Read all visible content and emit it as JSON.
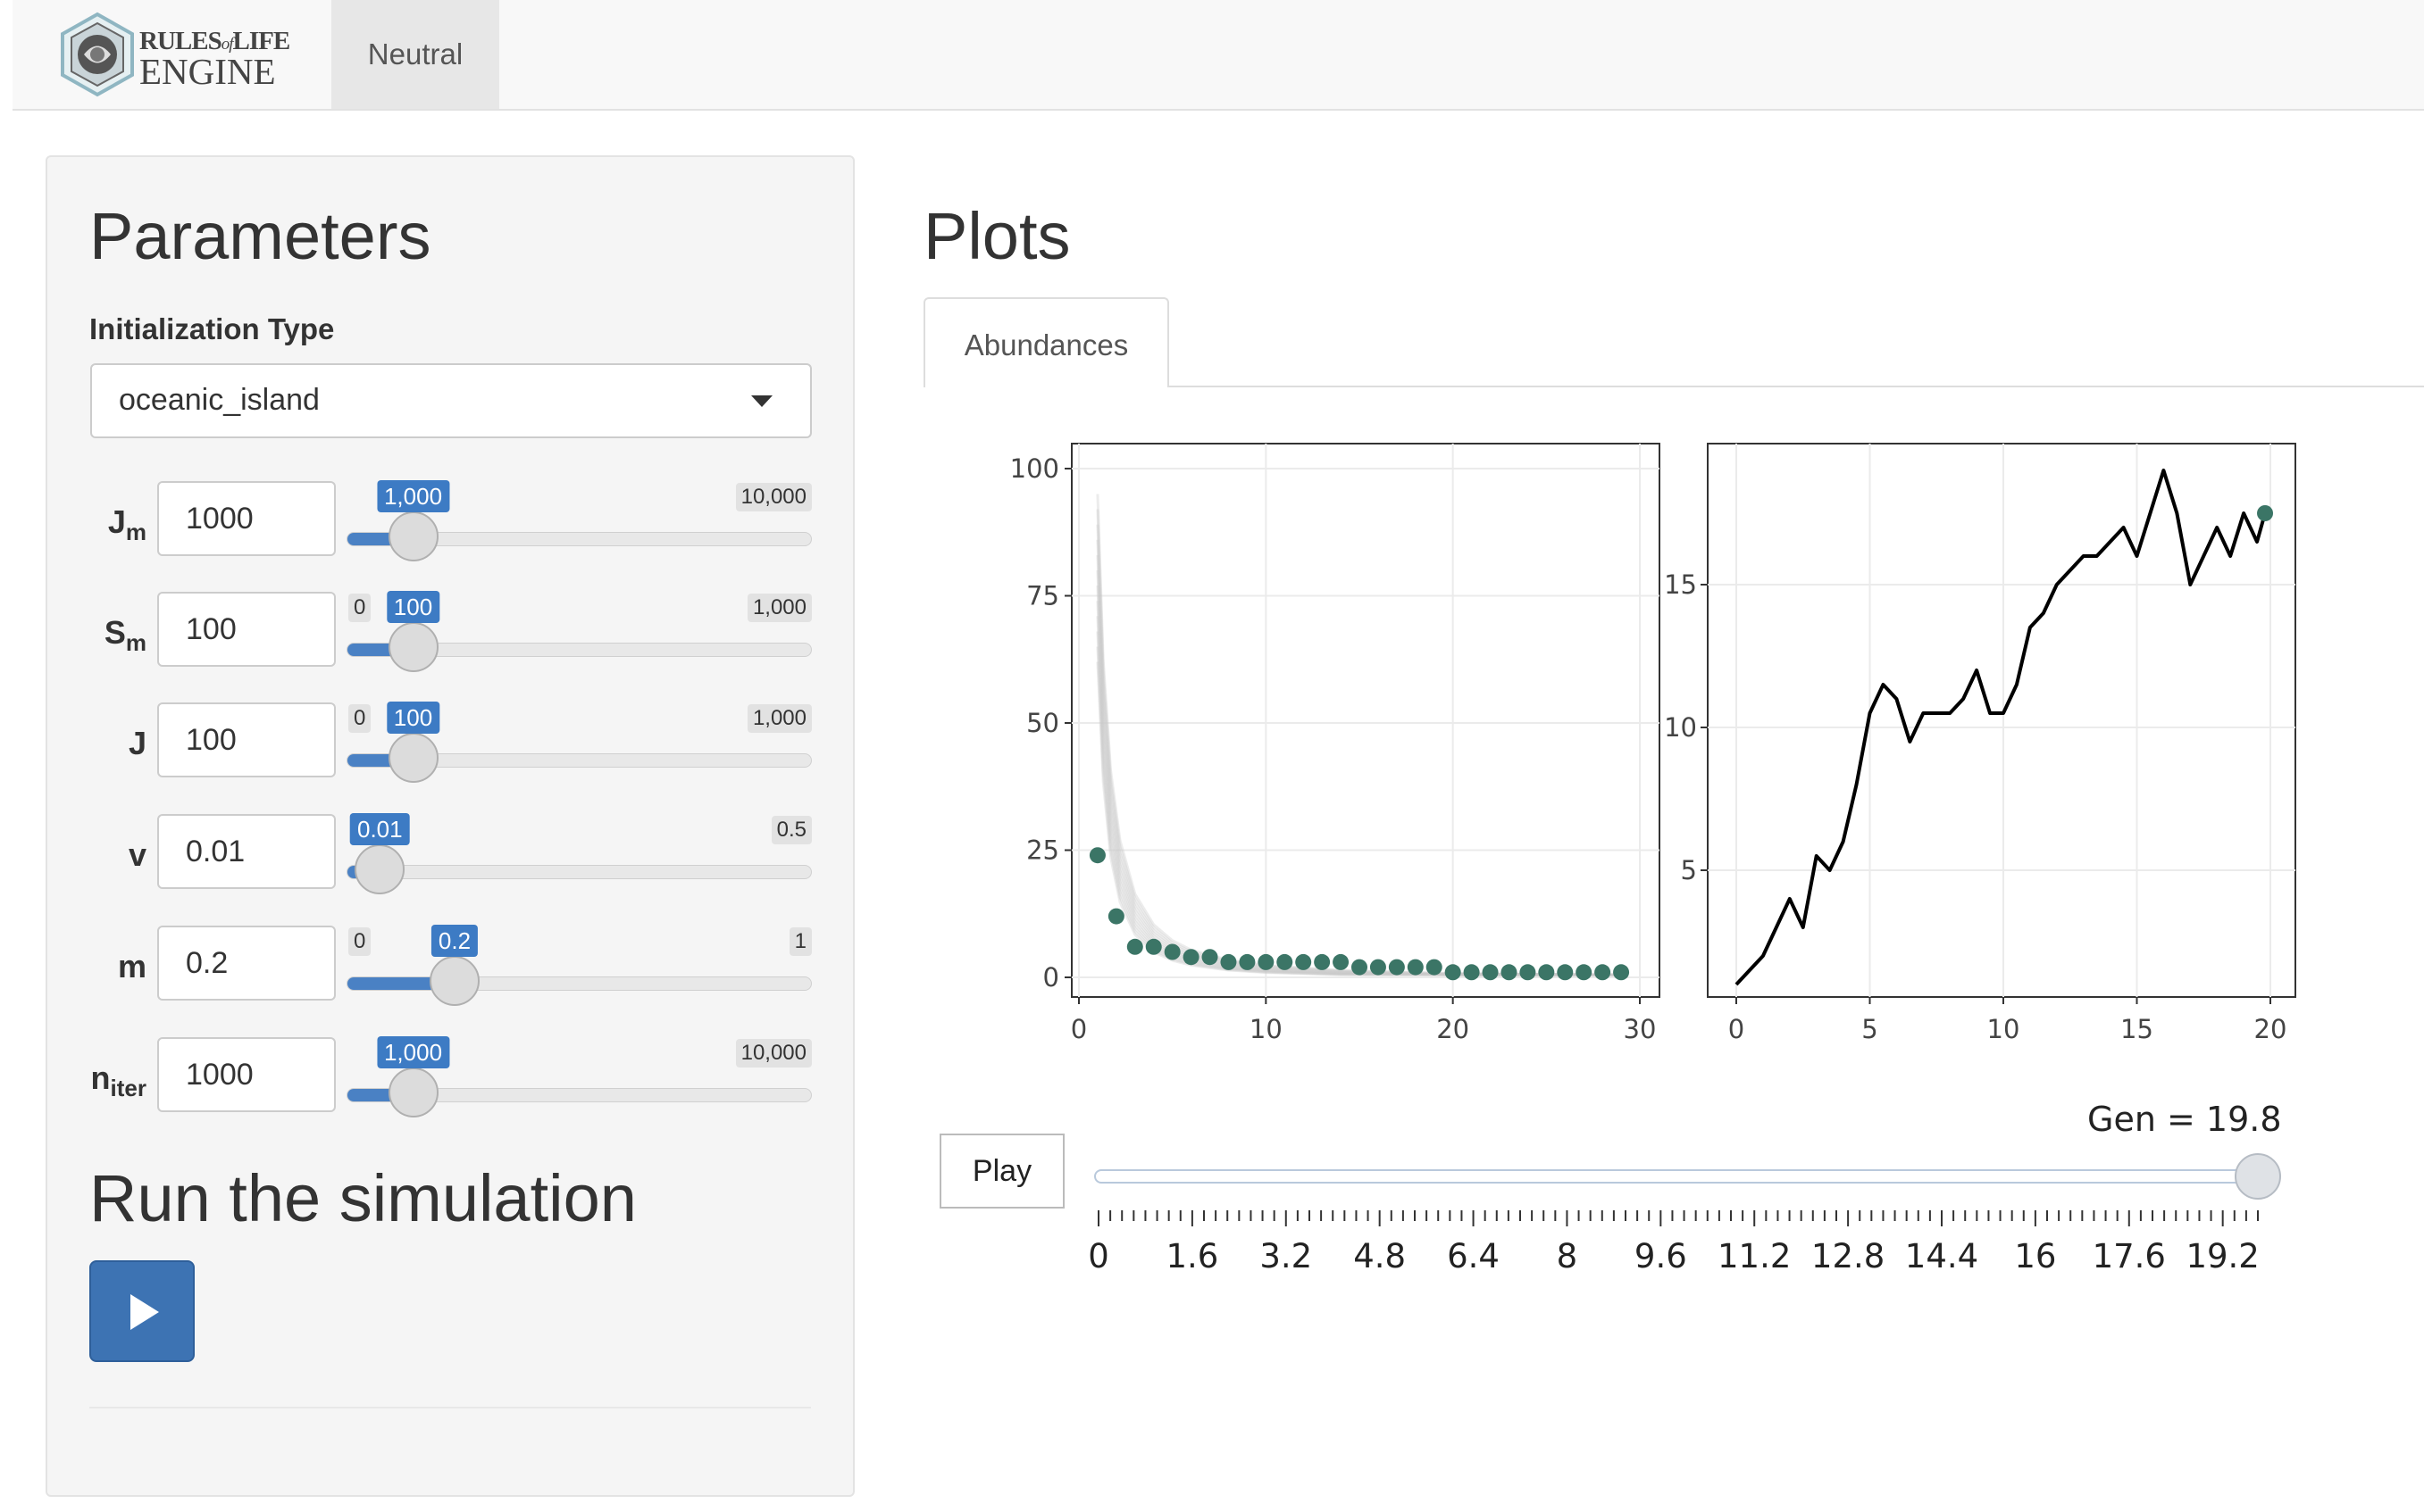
{
  "navbar": {
    "logo_line1": "RULES",
    "logo_of": "of",
    "logo_line1b": "LIFE",
    "logo_line2": "ENGINE",
    "tab_neutral": "Neutral"
  },
  "sidebar": {
    "title": "Parameters",
    "init_label": "Initialization Type",
    "init_value": "oceanic_island",
    "params": [
      {
        "label": "J",
        "sub": "m",
        "value": "1000",
        "min": "",
        "max": "10,000",
        "current": "1,000",
        "fraction": 0.1
      },
      {
        "label": "S",
        "sub": "m",
        "value": "100",
        "min": "0",
        "max": "1,000",
        "current": "100",
        "fraction": 0.1
      },
      {
        "label": "J",
        "sub": "",
        "value": "100",
        "min": "0",
        "max": "1,000",
        "current": "100",
        "fraction": 0.1
      },
      {
        "label": "v",
        "sub": "",
        "value": "0.01",
        "min": "",
        "max": "0.5",
        "current": "0.01",
        "fraction": 0.02
      },
      {
        "label": "m",
        "sub": "",
        "value": "0.2",
        "min": "0",
        "max": "1",
        "current": "0.2",
        "fraction": 0.2
      },
      {
        "label": "n",
        "sub": "iter",
        "value": "1000",
        "min": "",
        "max": "10,000",
        "current": "1,000",
        "fraction": 0.1
      }
    ],
    "run_title": "Run the simulation"
  },
  "main": {
    "title": "Plots",
    "tab_abundances": "Abundances"
  },
  "chart_data": [
    {
      "type": "scatter",
      "title": "",
      "xlabel": "",
      "ylabel": "",
      "xlim": [
        0,
        30
      ],
      "ylim": [
        0,
        100
      ],
      "xticks": [
        0,
        10,
        20,
        30
      ],
      "yticks": [
        0,
        25,
        50,
        75,
        100
      ],
      "x": [
        1,
        2,
        3,
        4,
        5,
        6,
        7,
        8,
        9,
        10,
        11,
        12,
        13,
        14,
        15,
        16,
        17,
        18,
        19,
        20,
        21,
        22,
        23,
        24,
        25,
        26,
        27,
        28,
        29
      ],
      "y": [
        24,
        12,
        6,
        6,
        5,
        4,
        4,
        3,
        3,
        3,
        3,
        3,
        3,
        3,
        2,
        2,
        2,
        2,
        2,
        1,
        1,
        1,
        1,
        1,
        1,
        1,
        1,
        1,
        1
      ],
      "color": "#3b7566"
    },
    {
      "type": "line",
      "title": "",
      "xlabel": "",
      "ylabel": "",
      "xlim": [
        0,
        20
      ],
      "ylim": [
        1.5,
        19
      ],
      "xticks": [
        0,
        5,
        10,
        15,
        20
      ],
      "yticks": [
        5,
        10,
        15
      ],
      "x": [
        0,
        0.5,
        1,
        1.5,
        2,
        2.5,
        3,
        3.5,
        4,
        4.5,
        5,
        5.5,
        6,
        6.5,
        7,
        7.5,
        8,
        8.5,
        9,
        9.5,
        10,
        10.5,
        11,
        11.5,
        12,
        12.5,
        13,
        13.5,
        14,
        14.5,
        15,
        15.5,
        16,
        16.5,
        17,
        17.5,
        18,
        18.5,
        19,
        19.5,
        19.8
      ],
      "y": [
        1,
        1.5,
        2,
        3,
        4,
        3,
        5.5,
        5,
        6,
        8,
        10.5,
        11.5,
        11,
        9.5,
        10.5,
        10.5,
        10.5,
        11,
        12,
        10.5,
        10.5,
        11.5,
        13.5,
        14,
        15,
        15.5,
        16,
        16,
        16.5,
        17,
        16,
        17.5,
        19,
        17.5,
        15,
        16,
        17,
        16,
        17.5,
        16.5,
        17.5
      ],
      "marker_last": true,
      "color": "#000000"
    }
  ],
  "animation": {
    "play_label": "Play",
    "gen_label": "Gen = 19.8",
    "gen_value": 19.8,
    "gen_max": 19.8,
    "tick_labels": [
      "0",
      "1.6",
      "3.2",
      "4.8",
      "6.4",
      "8",
      "9.6",
      "11.2",
      "12.8",
      "14.4",
      "16",
      "17.6",
      "19.2"
    ]
  }
}
